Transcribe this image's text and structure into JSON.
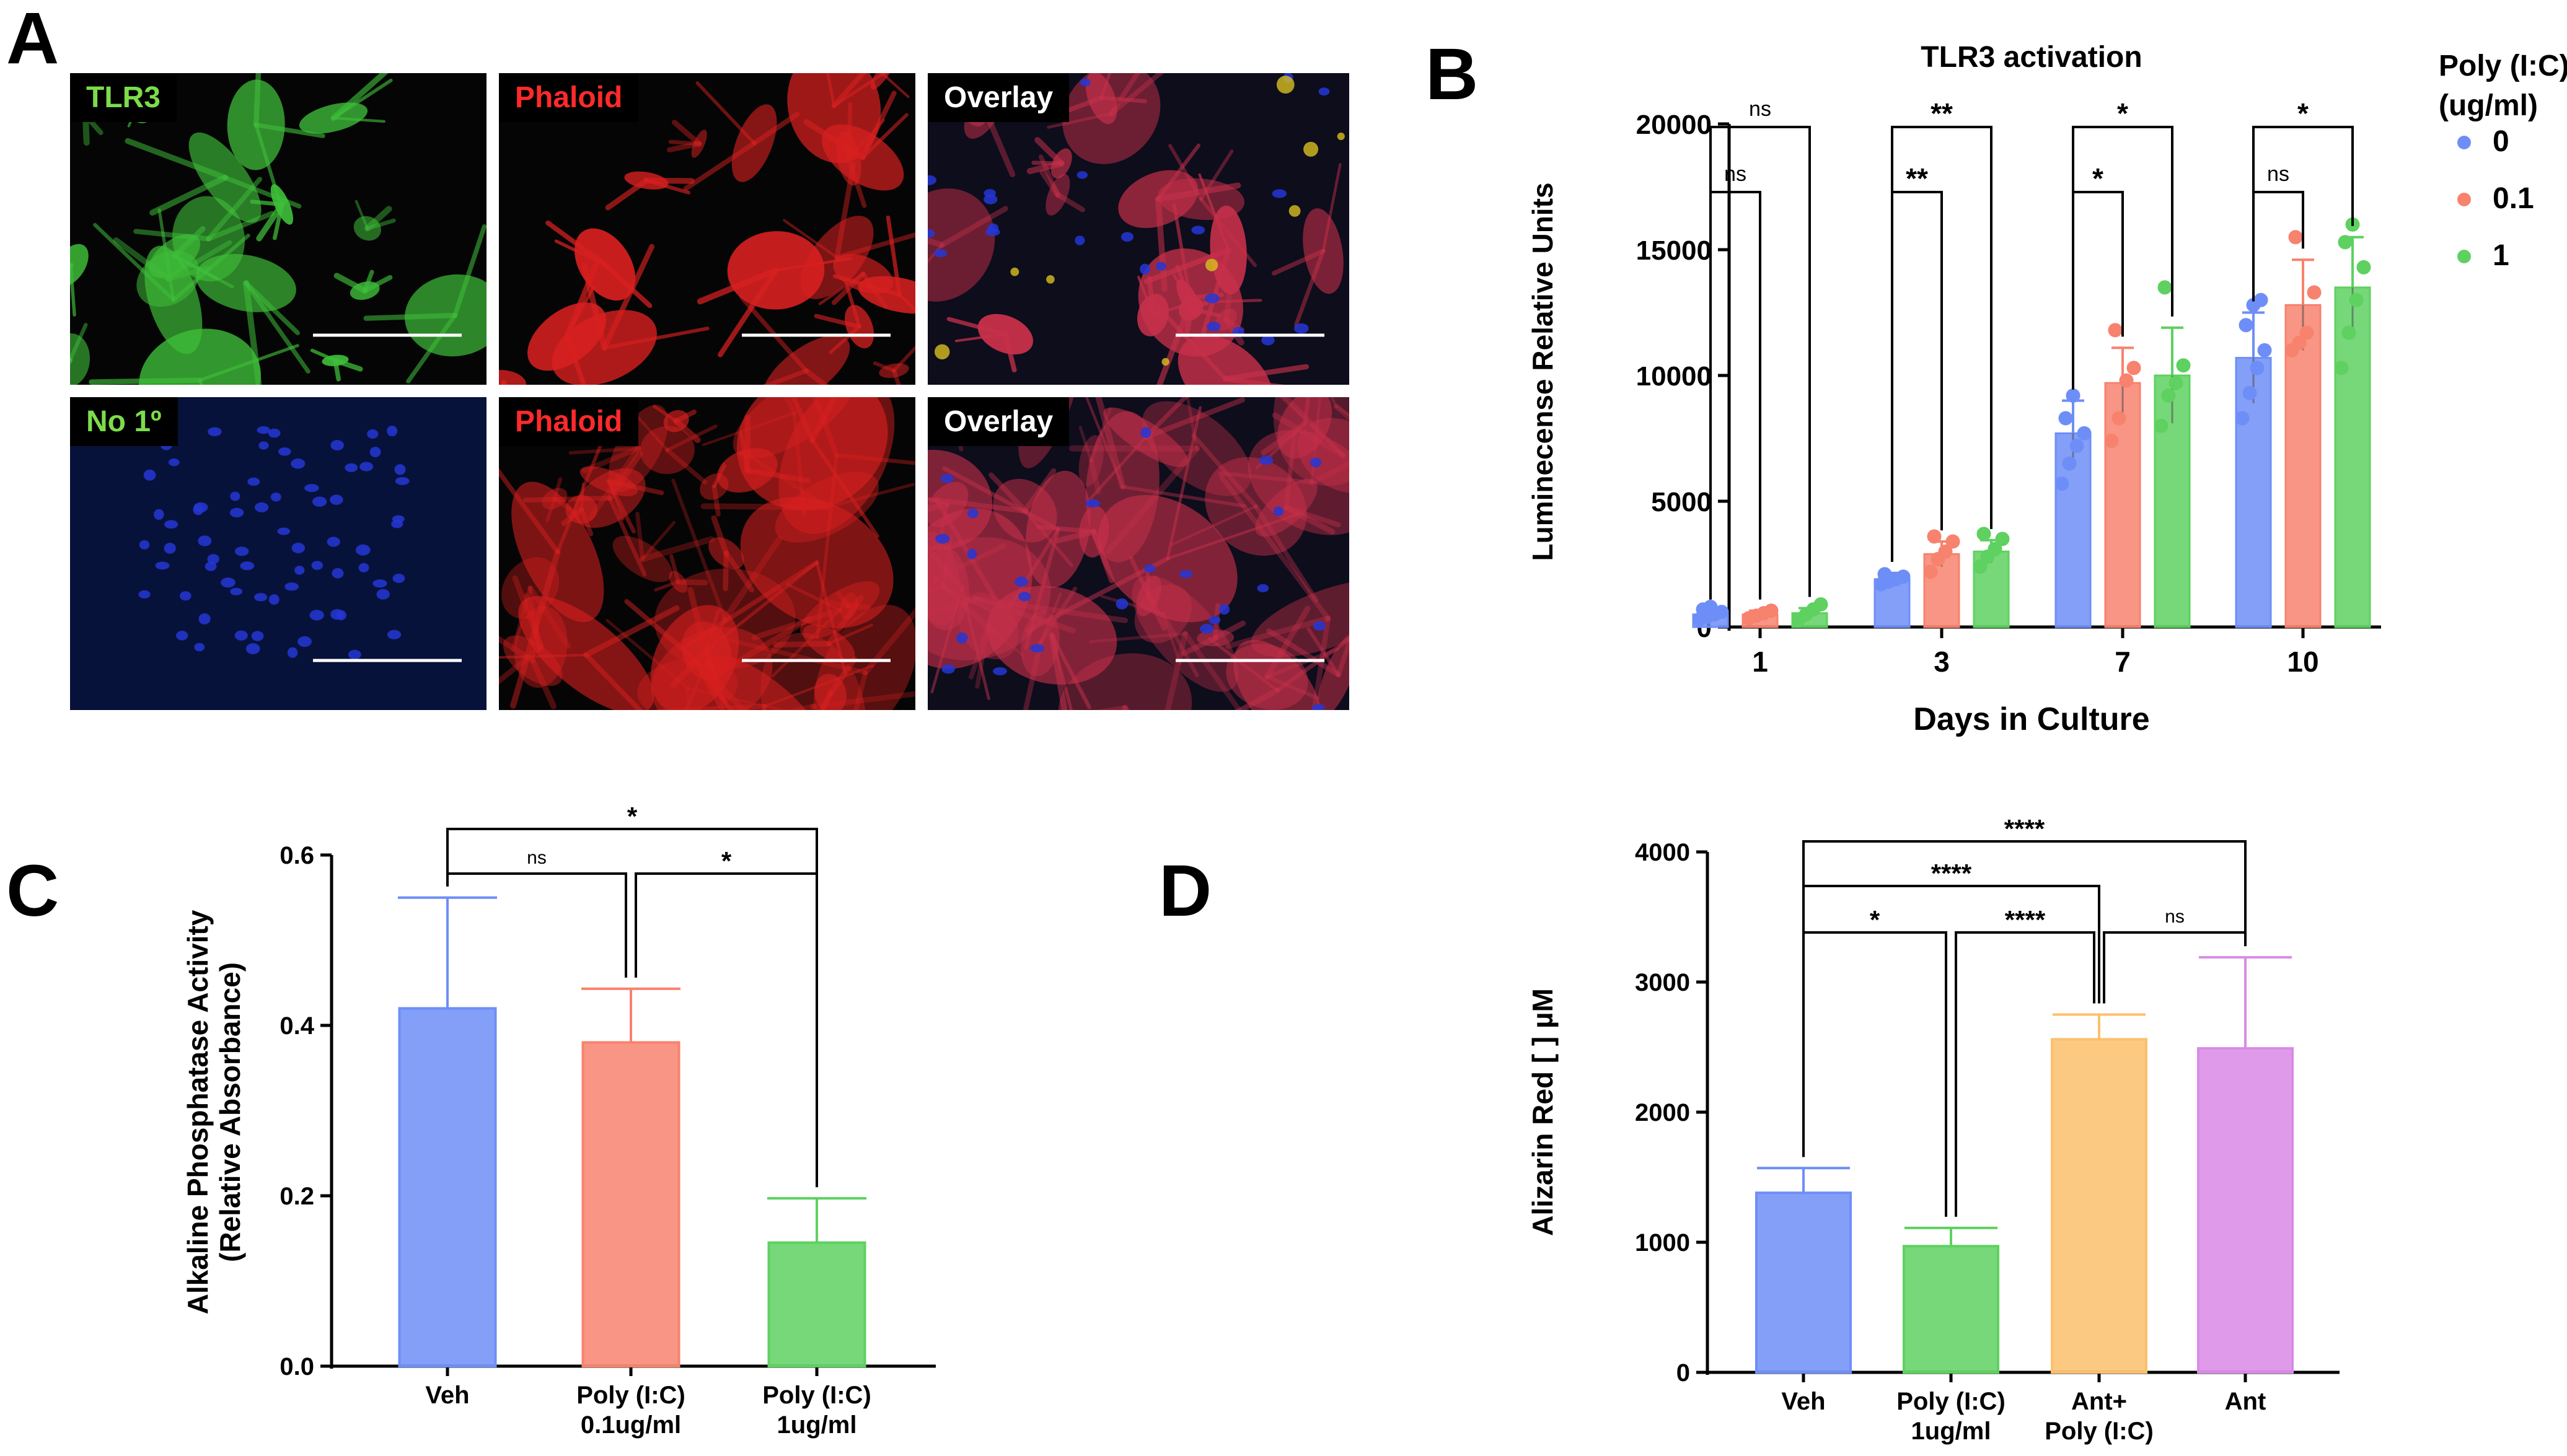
{
  "panels": {
    "A": "A",
    "B": "B",
    "C": "C",
    "D": "D"
  },
  "micrographs": [
    {
      "label": "TLR3",
      "label_color": "#7ddc4a",
      "stain": "green"
    },
    {
      "label": "Phaloid",
      "label_color": "#ff2a2a",
      "stain": "red"
    },
    {
      "label": "Overlay",
      "label_color": "#ffffff",
      "stain": "overlay"
    },
    {
      "label": "No 1º",
      "label_color": "#7ddc4a",
      "stain": "blue"
    },
    {
      "label": "Phaloid",
      "label_color": "#ff2a2a",
      "stain": "red-dense"
    },
    {
      "label": "Overlay",
      "label_color": "#ffffff",
      "stain": "overlay-dense"
    }
  ],
  "colors": {
    "blue": "#6e8ef7",
    "red": "#f7826e",
    "green": "#5ed160",
    "orange": "#fcc06c",
    "purple": "#d98ae6"
  },
  "chart_data": [
    {
      "type": "bar",
      "title": "TLR3 activation",
      "xlabel": "Days in Culture",
      "ylabel": "Luminecense Relative Units",
      "categories": [
        "1",
        "3",
        "7",
        "10"
      ],
      "ylim": [
        0,
        20000
      ],
      "yticks": [
        "0",
        "5000",
        "10000",
        "15000",
        "20000"
      ],
      "legend_title": [
        "Poly (I:C)",
        "(ug/ml)"
      ],
      "legend_position": "top-right",
      "series": [
        {
          "name": "0",
          "color": "#6e8ef7",
          "values": [
            500,
            1900,
            7700,
            10700
          ],
          "errors": [
            150,
            250,
            1300,
            1800
          ],
          "points": [
            [
              300,
              400,
              500,
              600,
              700,
              800
            ],
            [
              1700,
              1800,
              1900,
              2000,
              2100
            ],
            [
              5700,
              6500,
              7200,
              7700,
              8300,
              9200
            ],
            [
              8300,
              9300,
              10300,
              11000,
              12000,
              12800,
              13000
            ]
          ]
        },
        {
          "name": "0.1",
          "color": "#f7826e",
          "values": [
            500,
            2900,
            9700,
            12800
          ],
          "errors": [
            150,
            500,
            1400,
            1800
          ],
          "points": [
            [
              350,
              450,
              550,
              650
            ],
            [
              2200,
              2700,
              3000,
              3400,
              3600
            ],
            [
              7400,
              8300,
              9800,
              10300,
              11800
            ],
            [
              11000,
              11300,
              11700,
              13300,
              15500
            ]
          ]
        },
        {
          "name": "1",
          "color": "#5ed160",
          "values": [
            550,
            3000,
            10000,
            13500
          ],
          "errors": [
            200,
            450,
            1900,
            2000
          ],
          "points": [
            [
              300,
              500,
              700,
              900
            ],
            [
              2400,
              2800,
              3100,
              3500,
              3700
            ],
            [
              8000,
              9200,
              9700,
              10400,
              13500
            ],
            [
              10300,
              11700,
              13000,
              14300,
              15300,
              16000
            ]
          ]
        }
      ],
      "significance": [
        {
          "category": 0,
          "pair": "0-0.1",
          "label": "ns"
        },
        {
          "category": 0,
          "pair": "0-1",
          "label": "ns"
        },
        {
          "category": 1,
          "pair": "0-0.1",
          "label": "**"
        },
        {
          "category": 1,
          "pair": "0-1",
          "label": "**"
        },
        {
          "category": 2,
          "pair": "0-0.1",
          "label": "*"
        },
        {
          "category": 2,
          "pair": "0-1",
          "label": "*"
        },
        {
          "category": 3,
          "pair": "0-0.1",
          "label": "ns"
        },
        {
          "category": 3,
          "pair": "0-1",
          "label": "*"
        }
      ]
    },
    {
      "type": "bar",
      "title": "",
      "xlabel": "",
      "ylabel": [
        "Alkaline Phosphatase Activity",
        "(Relative Absorbance)"
      ],
      "categories": [
        [
          "Veh"
        ],
        [
          "Poly (I:C)",
          "0.1ug/ml"
        ],
        [
          "Poly (I:C)",
          "1ug/ml"
        ]
      ],
      "ylim": [
        0,
        0.6
      ],
      "yticks": [
        "0.0",
        "0.2",
        "0.4",
        "0.6"
      ],
      "values": [
        0.42,
        0.38,
        0.145
      ],
      "errors": [
        0.13,
        0.063,
        0.052
      ],
      "colors": [
        "#6e8ef7",
        "#f7826e",
        "#5ed160"
      ],
      "significance": [
        {
          "from": 0,
          "to": 1,
          "label": "ns",
          "level": 1
        },
        {
          "from": 1,
          "to": 2,
          "label": "*",
          "level": 1
        },
        {
          "from": 0,
          "to": 2,
          "label": "*",
          "level": 2
        }
      ]
    },
    {
      "type": "bar",
      "title": "",
      "xlabel": "",
      "ylabel": "Alizarin Red [ ] µM",
      "categories": [
        [
          "Veh"
        ],
        [
          "Poly (I:C)",
          "1ug/ml"
        ],
        [
          "Ant+",
          "Poly (I:C)"
        ],
        [
          "Ant"
        ]
      ],
      "ylim": [
        0,
        4000
      ],
      "yticks": [
        "0",
        "1000",
        "2000",
        "3000",
        "4000"
      ],
      "values": [
        1380,
        970,
        2560,
        2490
      ],
      "errors": [
        190,
        140,
        190,
        700
      ],
      "colors": [
        "#6e8ef7",
        "#5ed160",
        "#fcc06c",
        "#d98ae6"
      ],
      "significance": [
        {
          "from": 0,
          "to": 1,
          "label": "*",
          "level": 1
        },
        {
          "from": 1,
          "to": 2,
          "label": "****",
          "level": 1
        },
        {
          "from": 2,
          "to": 3,
          "label": "ns",
          "level": 1
        },
        {
          "from": 0,
          "to": 2,
          "label": "****",
          "level": 2
        },
        {
          "from": 0,
          "to": 3,
          "label": "****",
          "level": 3
        }
      ]
    }
  ]
}
